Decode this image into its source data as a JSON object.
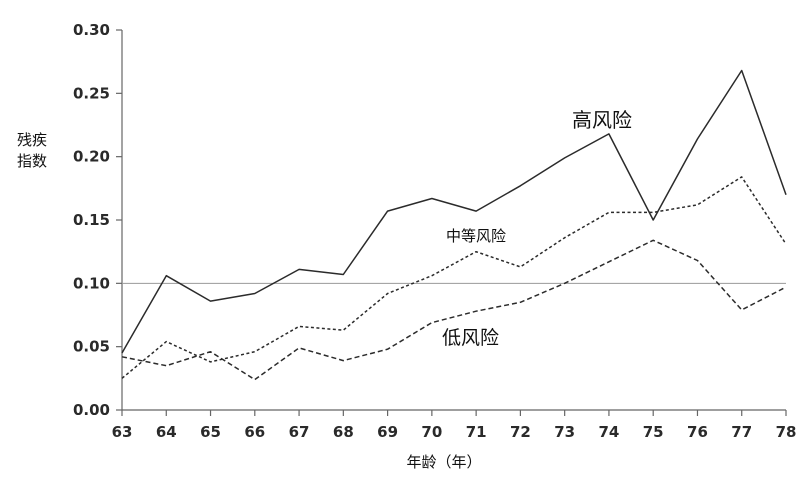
{
  "chart_data": {
    "type": "line",
    "x": [
      63,
      64,
      65,
      66,
      67,
      68,
      69,
      70,
      71,
      72,
      73,
      74,
      75,
      76,
      77,
      78
    ],
    "xlabel": "年龄（年）",
    "ylabel": "残疾指数",
    "ylabel_lines": [
      "残疾",
      "指数"
    ],
    "xlim": [
      63,
      78
    ],
    "ylim": [
      0,
      0.3
    ],
    "yticks": [
      "0.00",
      "0.05",
      "0.10",
      "0.15",
      "0.20",
      "0.25",
      "0.30"
    ],
    "reference_line": 0.1,
    "grid": false,
    "series": [
      {
        "name": "高风险",
        "style": "solid",
        "values": [
          0.045,
          0.106,
          0.086,
          0.092,
          0.111,
          0.107,
          0.157,
          0.167,
          0.157,
          0.177,
          0.199,
          0.218,
          0.15,
          0.214,
          0.268,
          0.17
        ]
      },
      {
        "name": "中等风险",
        "style": "dotted",
        "values": [
          0.025,
          0.054,
          0.038,
          0.046,
          0.066,
          0.063,
          0.092,
          0.106,
          0.125,
          0.113,
          0.136,
          0.156,
          0.156,
          0.162,
          0.184,
          0.131
        ]
      },
      {
        "name": "低风险",
        "style": "dashed",
        "values": [
          0.042,
          0.035,
          0.046,
          0.024,
          0.049,
          0.039,
          0.048,
          0.069,
          0.078,
          0.085,
          0.1,
          0.117,
          0.134,
          0.118,
          0.079,
          0.097
        ]
      }
    ]
  }
}
